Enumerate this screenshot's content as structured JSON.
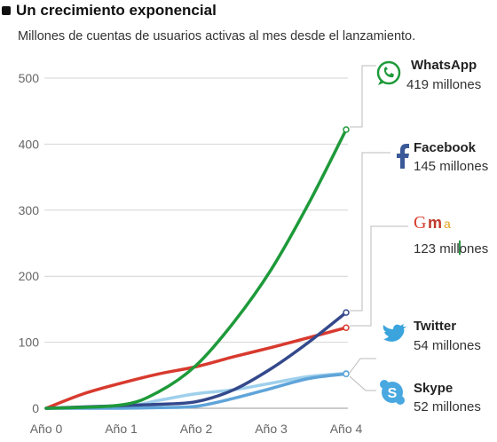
{
  "title": "Un crecimiento exponencial",
  "subtitle": "Millones de cuentas de usuarios activas al mes desde el lanzamiento.",
  "chart_data": {
    "type": "line",
    "title": "Un crecimiento exponencial",
    "subtitle": "Millones de cuentas de usuarios activas al mes desde el lanzamiento.",
    "xlabel": "",
    "ylabel": "",
    "categories": [
      "Año 0",
      "Año 1",
      "Año 2",
      "Año 3",
      "Año 4"
    ],
    "x": [
      0,
      1,
      2,
      3,
      4
    ],
    "ylim": [
      0,
      500
    ],
    "yticks": [
      0,
      100,
      200,
      300,
      400,
      500
    ],
    "grid": true,
    "legend": "right, direct labels with icons",
    "series": [
      {
        "name": "WhatsApp",
        "label": "419 millones",
        "color": "#1e9a3a",
        "icon": "whatsapp-icon",
        "x": [
          0,
          1,
          1.5,
          2,
          2.5,
          3,
          3.5,
          4
        ],
        "values": [
          0,
          5,
          25,
          65,
          130,
          210,
          310,
          422
        ]
      },
      {
        "name": "Facebook",
        "label": "145 millones",
        "color": "#34498c",
        "icon": "facebook-icon",
        "x": [
          0,
          1,
          1.5,
          2,
          2.5,
          3,
          3.5,
          4
        ],
        "values": [
          0,
          4,
          6,
          10,
          28,
          60,
          100,
          145
        ]
      },
      {
        "name": "Gmail",
        "label": "123 millones",
        "color": "#d83a2e",
        "icon": "gmail-icon",
        "x": [
          0,
          0.5,
          1,
          1.5,
          2,
          2.5,
          3,
          3.5,
          4
        ],
        "values": [
          0,
          22,
          38,
          52,
          63,
          78,
          92,
          107,
          122
        ]
      },
      {
        "name": "Twitter",
        "label": "54 millones",
        "color": "#9fd0ec",
        "icon": "twitter-icon",
        "x": [
          0,
          1,
          1.5,
          2,
          2.5,
          3,
          3.5,
          4
        ],
        "values": [
          0,
          2,
          12,
          22,
          28,
          38,
          48,
          53
        ]
      },
      {
        "name": "Skype",
        "label": "52 millones",
        "color": "#5fa4d9",
        "icon": "skype-icon",
        "x": [
          0,
          1,
          1.5,
          2,
          2.5,
          3,
          3.5,
          4
        ],
        "values": [
          0,
          0,
          1,
          3,
          15,
          30,
          45,
          52
        ]
      }
    ]
  }
}
